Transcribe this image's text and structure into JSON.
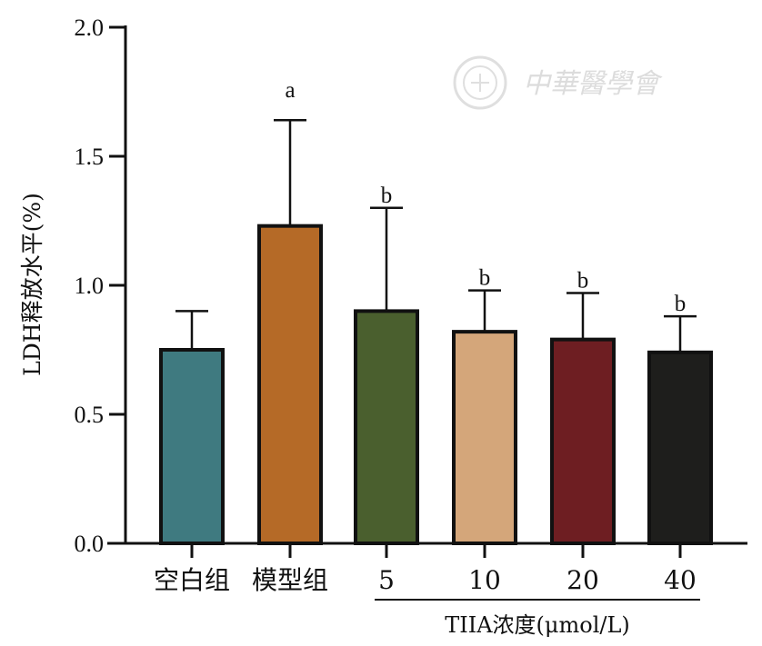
{
  "chart_data": {
    "type": "bar",
    "ylabel": "LDH释放水平(%)",
    "ylim": [
      0,
      2.0
    ],
    "yticks": [
      "0.0",
      "0.5",
      "1.0",
      "1.5",
      "2.0"
    ],
    "categories": [
      "空白组",
      "模型组",
      "5",
      "10",
      "20",
      "40"
    ],
    "values": [
      0.75,
      1.23,
      0.9,
      0.82,
      0.79,
      0.74
    ],
    "errors": [
      0.15,
      0.41,
      0.4,
      0.16,
      0.18,
      0.14
    ],
    "significance": [
      "",
      "a",
      "b",
      "b",
      "b",
      "b"
    ],
    "colors": [
      "#3f7a80",
      "#b56a27",
      "#4a5f2e",
      "#d4a67a",
      "#6e1e22",
      "#1e1e1c"
    ],
    "group_label": "TIIA浓度(μmol/L)",
    "grid": false
  },
  "watermark": {
    "text": "中華醫學會"
  }
}
